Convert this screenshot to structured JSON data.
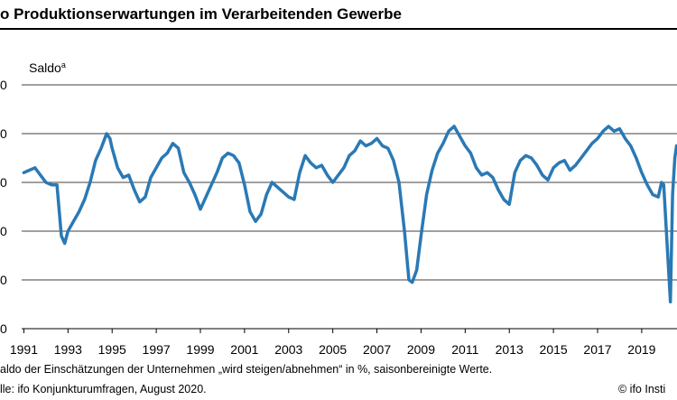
{
  "header": {
    "title": "o Produktionserwartungen im Verarbeitenden Gewerbe"
  },
  "footer": {
    "footnote": "aldo der Einschätzungen der Unternehmen „wird steigen/abnehmen“ in %, saisonbereinigte Werte.",
    "source": "lle: ifo Konjunkturumfragen, August 2020.",
    "copyright": "© ifo Insti"
  },
  "chart_data": {
    "type": "line",
    "title": "o Produktionserwartungen im Verarbeitenden Gewerbe",
    "ylabel": "Saldo",
    "ylabel_superscript": "a",
    "xlabel": "",
    "ylim": [
      -50,
      50
    ],
    "yticks": [
      50,
      30,
      10,
      -10,
      -30,
      -50
    ],
    "ytick_labels": [
      "0",
      "0",
      "0",
      "0",
      "0",
      "0"
    ],
    "xlim": [
      1990.9,
      2020.6
    ],
    "xticks": [
      1991,
      1993,
      1995,
      1997,
      1999,
      2001,
      2003,
      2005,
      2007,
      2009,
      2011,
      2013,
      2015,
      2017,
      2019
    ],
    "xtick_labels": [
      "1991",
      "1993",
      "1995",
      "1997",
      "1999",
      "2001",
      "2003",
      "2005",
      "2007",
      "2009",
      "2011",
      "2013",
      "2015",
      "2017",
      "2019"
    ],
    "grid": "horizontal",
    "line_color": "#2a79b5",
    "series": [
      {
        "name": "",
        "points": [
          [
            1991.0,
            14
          ],
          [
            1991.25,
            15
          ],
          [
            1991.5,
            16
          ],
          [
            1991.75,
            13
          ],
          [
            1992.0,
            10
          ],
          [
            1992.25,
            9
          ],
          [
            1992.5,
            9
          ],
          [
            1992.7,
            -12
          ],
          [
            1992.85,
            -15
          ],
          [
            1993.0,
            -10
          ],
          [
            1993.25,
            -6
          ],
          [
            1993.5,
            -2
          ],
          [
            1993.75,
            3
          ],
          [
            1994.0,
            10
          ],
          [
            1994.25,
            19
          ],
          [
            1994.5,
            24
          ],
          [
            1994.75,
            30
          ],
          [
            1994.9,
            28
          ],
          [
            1995.0,
            24
          ],
          [
            1995.25,
            16
          ],
          [
            1995.5,
            12
          ],
          [
            1995.75,
            13
          ],
          [
            1996.0,
            7
          ],
          [
            1996.25,
            2
          ],
          [
            1996.5,
            4
          ],
          [
            1996.75,
            12
          ],
          [
            1997.0,
            16
          ],
          [
            1997.25,
            20
          ],
          [
            1997.5,
            22
          ],
          [
            1997.75,
            26
          ],
          [
            1998.0,
            24
          ],
          [
            1998.25,
            14
          ],
          [
            1998.5,
            10
          ],
          [
            1998.75,
            5
          ],
          [
            1999.0,
            -1
          ],
          [
            1999.25,
            4
          ],
          [
            1999.5,
            9
          ],
          [
            1999.75,
            14
          ],
          [
            2000.0,
            20
          ],
          [
            2000.25,
            22
          ],
          [
            2000.5,
            21
          ],
          [
            2000.75,
            18
          ],
          [
            2001.0,
            9
          ],
          [
            2001.25,
            -2
          ],
          [
            2001.5,
            -6
          ],
          [
            2001.75,
            -3
          ],
          [
            2002.0,
            5
          ],
          [
            2002.25,
            10
          ],
          [
            2002.5,
            8
          ],
          [
            2002.75,
            6
          ],
          [
            2003.0,
            4
          ],
          [
            2003.25,
            3
          ],
          [
            2003.5,
            14
          ],
          [
            2003.75,
            21
          ],
          [
            2004.0,
            18
          ],
          [
            2004.25,
            16
          ],
          [
            2004.5,
            17
          ],
          [
            2004.75,
            13
          ],
          [
            2005.0,
            10
          ],
          [
            2005.25,
            13
          ],
          [
            2005.5,
            16
          ],
          [
            2005.75,
            21
          ],
          [
            2006.0,
            23
          ],
          [
            2006.25,
            27
          ],
          [
            2006.5,
            25
          ],
          [
            2006.75,
            26
          ],
          [
            2007.0,
            28
          ],
          [
            2007.25,
            25
          ],
          [
            2007.5,
            24
          ],
          [
            2007.75,
            19
          ],
          [
            2008.0,
            10
          ],
          [
            2008.25,
            -10
          ],
          [
            2008.45,
            -30
          ],
          [
            2008.6,
            -31
          ],
          [
            2008.8,
            -26
          ],
          [
            2009.0,
            -12
          ],
          [
            2009.25,
            5
          ],
          [
            2009.5,
            15
          ],
          [
            2009.75,
            22
          ],
          [
            2010.0,
            26
          ],
          [
            2010.25,
            31
          ],
          [
            2010.5,
            33
          ],
          [
            2010.75,
            29
          ],
          [
            2011.0,
            25
          ],
          [
            2011.25,
            22
          ],
          [
            2011.5,
            16
          ],
          [
            2011.75,
            13
          ],
          [
            2012.0,
            14
          ],
          [
            2012.25,
            12
          ],
          [
            2012.5,
            7
          ],
          [
            2012.75,
            3
          ],
          [
            2013.0,
            1
          ],
          [
            2013.25,
            14
          ],
          [
            2013.5,
            19
          ],
          [
            2013.75,
            21
          ],
          [
            2014.0,
            20
          ],
          [
            2014.25,
            17
          ],
          [
            2014.5,
            13
          ],
          [
            2014.75,
            11
          ],
          [
            2015.0,
            16
          ],
          [
            2015.25,
            18
          ],
          [
            2015.5,
            19
          ],
          [
            2015.75,
            15
          ],
          [
            2016.0,
            17
          ],
          [
            2016.25,
            20
          ],
          [
            2016.5,
            23
          ],
          [
            2016.75,
            26
          ],
          [
            2017.0,
            28
          ],
          [
            2017.25,
            31
          ],
          [
            2017.5,
            33
          ],
          [
            2017.75,
            31
          ],
          [
            2018.0,
            32
          ],
          [
            2018.25,
            28
          ],
          [
            2018.5,
            25
          ],
          [
            2018.75,
            20
          ],
          [
            2019.0,
            14
          ],
          [
            2019.25,
            9
          ],
          [
            2019.5,
            5
          ],
          [
            2019.75,
            4
          ],
          [
            2019.9,
            10
          ],
          [
            2020.0,
            9
          ],
          [
            2020.15,
            -15
          ],
          [
            2020.3,
            -39
          ],
          [
            2020.4,
            5
          ],
          [
            2020.5,
            20
          ],
          [
            2020.58,
            25
          ]
        ]
      }
    ]
  }
}
